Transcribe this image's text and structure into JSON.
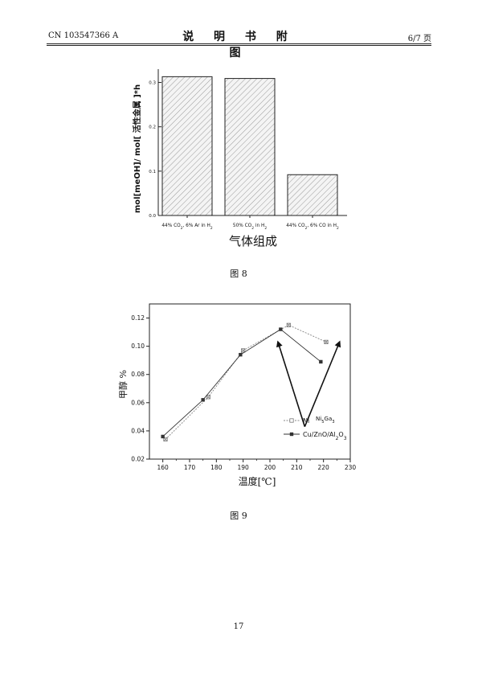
{
  "header": {
    "patent_no": "CN 103547366 A",
    "title": "说 明 书 附 图",
    "page_of": "6/7 页"
  },
  "figures": [
    {
      "caption": "图 8"
    },
    {
      "caption": "图 9"
    }
  ],
  "page_number": "17",
  "chart_data": [
    {
      "type": "bar",
      "title": "",
      "xlabel": "气体组成",
      "ylabel": "mol[meOH]/ mol[ 活性金属 ]*h",
      "categories": [
        "44% CO2, 6% Ar in H2",
        "50% CO2 in H2",
        "44% CO2, 6% CO in H2"
      ],
      "values": [
        0.313,
        0.309,
        0.092
      ],
      "ylim": [
        0,
        0.33
      ],
      "yticks": [
        "0.0",
        "0.1",
        "0.2",
        "0.3"
      ],
      "pattern": "hatched",
      "grid": false
    },
    {
      "type": "line",
      "title": "",
      "xlabel": "温度[℃]",
      "ylabel": "甲醇 %",
      "xlim": [
        158,
        230
      ],
      "ylim": [
        0.02,
        0.13
      ],
      "xticks": [
        "160",
        "170",
        "180",
        "190",
        "200",
        "210",
        "220",
        "230"
      ],
      "yticks": [
        "0.02",
        "0.04",
        "0.06",
        "0.08",
        "0.10",
        "0.12"
      ],
      "legend_position": "lower-right",
      "series": [
        {
          "name": "Ni",
          "x": [
            161,
            177,
            190,
            207,
            221
          ],
          "y": [
            0.034,
            0.064,
            0.097,
            0.115,
            0.103
          ],
          "marker": "crossed-square",
          "line": "dashed",
          "color": "#888888"
        },
        {
          "name": "Cu/ZnO/Al2O3",
          "x": [
            160,
            175,
            189,
            204,
            219
          ],
          "y": [
            0.036,
            0.062,
            0.094,
            0.112,
            0.089
          ],
          "marker": "filled-square",
          "line": "solid",
          "color": "#333333"
        }
      ],
      "annotations": [
        {
          "text": "Ni5Ga3",
          "anchor_x": 207,
          "anchor_y": 0.049,
          "kind": "label"
        },
        {
          "kind": "arrow",
          "from_x": 213,
          "from_y": 0.043,
          "to_x": 203,
          "to_y": 0.103
        },
        {
          "kind": "arrow",
          "from_x": 213,
          "from_y": 0.043,
          "to_x": 226,
          "to_y": 0.103
        }
      ]
    }
  ]
}
